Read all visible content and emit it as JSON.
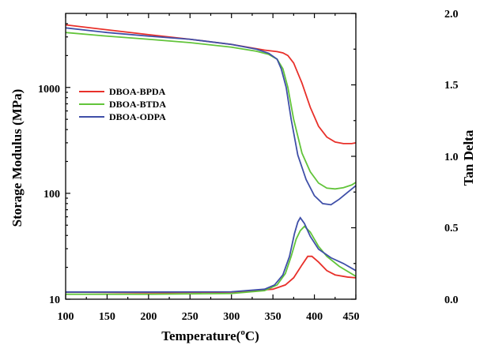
{
  "chart_data": {
    "type": "line",
    "title": "",
    "xlabel": "Temperature(oC)",
    "xlabel_parts": {
      "main": "Temperature(",
      "sup": "o",
      "end": "C)"
    },
    "ylabel_left": "Storage Modulus (MPa)",
    "ylabel_right": "Tan Delta",
    "xlim": [
      100,
      450
    ],
    "ylim_left": [
      10,
      5000
    ],
    "ylim_right": [
      0.0,
      2.0
    ],
    "y_left_scale": "log",
    "x_ticks": [
      "100",
      "150",
      "200",
      "250",
      "300",
      "350",
      "400",
      "450"
    ],
    "y_left_ticks": [
      "10",
      "100",
      "1000"
    ],
    "y_right_ticks": [
      "0.0",
      "0.5",
      "1.0",
      "1.5",
      "2.0"
    ],
    "grid": false,
    "legend_position": "upper-left",
    "series": [
      {
        "name": "DBOA-BPDA",
        "color": "#e8302a",
        "storage_modulus": {
          "x": [
            100,
            150,
            200,
            250,
            300,
            340,
            355,
            362,
            368,
            375,
            385,
            395,
            405,
            415,
            425,
            435,
            445,
            450
          ],
          "y": [
            3900,
            3500,
            3150,
            2850,
            2550,
            2250,
            2180,
            2120,
            2000,
            1700,
            1100,
            650,
            430,
            340,
            305,
            295,
            295,
            300
          ]
        },
        "tan_delta": {
          "x": [
            100,
            200,
            300,
            350,
            365,
            375,
            385,
            392,
            397,
            405,
            415,
            425,
            440,
            450
          ],
          "y": [
            0.05,
            0.046,
            0.05,
            0.07,
            0.1,
            0.15,
            0.24,
            0.3,
            0.3,
            0.26,
            0.2,
            0.17,
            0.155,
            0.15
          ]
        }
      },
      {
        "name": "DBOA-BTDA",
        "color": "#62c43a",
        "storage_modulus": {
          "x": [
            100,
            150,
            200,
            250,
            300,
            330,
            345,
            355,
            362,
            368,
            375,
            385,
            395,
            405,
            415,
            425,
            435,
            445,
            450
          ],
          "y": [
            3300,
            3050,
            2850,
            2650,
            2400,
            2200,
            2050,
            1850,
            1500,
            1000,
            500,
            240,
            160,
            125,
            112,
            110,
            113,
            120,
            127
          ]
        },
        "tan_delta": {
          "x": [
            100,
            200,
            300,
            340,
            355,
            365,
            372,
            378,
            383,
            388,
            395,
            405,
            415,
            430,
            450
          ],
          "y": [
            0.035,
            0.035,
            0.04,
            0.06,
            0.1,
            0.18,
            0.3,
            0.42,
            0.48,
            0.51,
            0.47,
            0.37,
            0.3,
            0.23,
            0.16
          ]
        }
      },
      {
        "name": "DBOA-ODPA",
        "color": "#3f4fa8",
        "storage_modulus": {
          "x": [
            100,
            150,
            200,
            250,
            300,
            330,
            345,
            355,
            360,
            366,
            372,
            380,
            390,
            400,
            410,
            420,
            430,
            440,
            450
          ],
          "y": [
            3650,
            3300,
            3050,
            2850,
            2550,
            2300,
            2100,
            1850,
            1500,
            1000,
            500,
            230,
            135,
            95,
            80,
            78,
            88,
            102,
            118
          ]
        },
        "tan_delta": {
          "x": [
            100,
            200,
            300,
            340,
            352,
            362,
            370,
            376,
            380,
            383,
            388,
            395,
            405,
            420,
            435,
            450
          ],
          "y": [
            0.05,
            0.05,
            0.052,
            0.07,
            0.1,
            0.17,
            0.3,
            0.46,
            0.54,
            0.57,
            0.53,
            0.44,
            0.35,
            0.29,
            0.25,
            0.2
          ]
        }
      }
    ]
  }
}
